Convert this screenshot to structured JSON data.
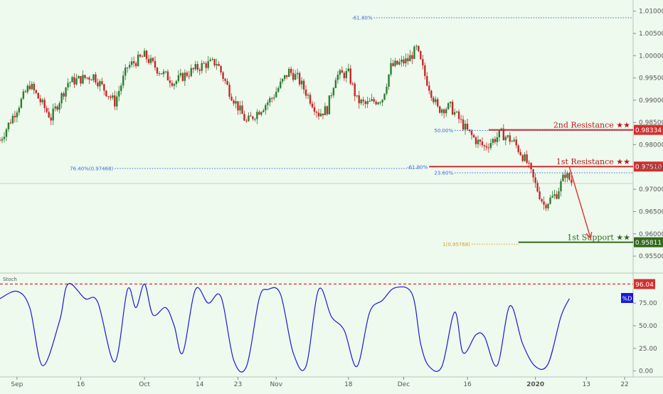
{
  "chart_data": [
    {
      "type": "candlestick",
      "title": "",
      "y_axis": {
        "range": [
          0.9515,
          1.0125
        ],
        "ticks": [
          "0.95500",
          "0.96000",
          "0.96500",
          "0.97000",
          "0.97500",
          "0.98000",
          "0.98500",
          "0.99000",
          "0.99500",
          "1.00000",
          "1.00500",
          "1.01000"
        ]
      },
      "x_axis": {
        "range": [
          "2019-08-28",
          "2020-01-24"
        ],
        "ticks": [
          {
            "date": "2019-09-01",
            "label": "Sep",
            "bold": false
          },
          {
            "date": "2019-09-16",
            "label": "16",
            "bold": false
          },
          {
            "date": "2019-10-01",
            "label": "Oct",
            "bold": false
          },
          {
            "date": "2019-10-14",
            "label": "14",
            "bold": false
          },
          {
            "date": "2019-10-23",
            "label": "23",
            "bold": false
          },
          {
            "date": "2019-11-01",
            "label": "Nov",
            "bold": false
          },
          {
            "date": "2019-11-18",
            "label": "18",
            "bold": false
          },
          {
            "date": "2019-12-01",
            "label": "Dec",
            "bold": false
          },
          {
            "date": "2019-12-16",
            "label": "16",
            "bold": false
          },
          {
            "date": "2020-01-01",
            "label": "2020",
            "bold": true
          },
          {
            "date": "2020-01-13",
            "label": "13",
            "bold": false
          },
          {
            "date": "2020-01-22",
            "label": "22",
            "bold": false
          }
        ]
      },
      "price_path": [
        {
          "date": "2019-08-28",
          "price": 0.981
        },
        {
          "date": "2019-09-04",
          "price": 0.9935
        },
        {
          "date": "2019-09-09",
          "price": 0.986
        },
        {
          "date": "2019-09-13",
          "price": 0.994
        },
        {
          "date": "2019-09-19",
          "price": 0.9955
        },
        {
          "date": "2019-09-24",
          "price": 0.9895
        },
        {
          "date": "2019-09-27",
          "price": 0.9975
        },
        {
          "date": "2019-10-01",
          "price": 1.0
        },
        {
          "date": "2019-10-04",
          "price": 0.997
        },
        {
          "date": "2019-10-08",
          "price": 0.994
        },
        {
          "date": "2019-10-11",
          "price": 0.996
        },
        {
          "date": "2019-10-15",
          "price": 0.998
        },
        {
          "date": "2019-10-18",
          "price": 0.9985
        },
        {
          "date": "2019-10-21",
          "price": 0.992
        },
        {
          "date": "2019-10-25",
          "price": 0.985
        },
        {
          "date": "2019-10-31",
          "price": 0.9905
        },
        {
          "date": "2019-11-04",
          "price": 0.9965
        },
        {
          "date": "2019-11-06",
          "price": 0.995
        },
        {
          "date": "2019-11-11",
          "price": 0.987
        },
        {
          "date": "2019-11-13",
          "price": 0.988
        },
        {
          "date": "2019-11-15",
          "price": 0.9955
        },
        {
          "date": "2019-11-18",
          "price": 0.996
        },
        {
          "date": "2019-11-20",
          "price": 0.99
        },
        {
          "date": "2019-11-22",
          "price": 0.989
        },
        {
          "date": "2019-11-26",
          "price": 0.9905
        },
        {
          "date": "2019-11-28",
          "price": 0.9975
        },
        {
          "date": "2019-12-02",
          "price": 0.999
        },
        {
          "date": "2019-12-04",
          "price": 1.0015
        },
        {
          "date": "2019-12-06",
          "price": 0.9955
        },
        {
          "date": "2019-12-09",
          "price": 0.988
        },
        {
          "date": "2019-12-12",
          "price": 0.9885
        },
        {
          "date": "2019-12-16",
          "price": 0.983
        },
        {
          "date": "2019-12-18",
          "price": 0.981
        },
        {
          "date": "2019-12-20",
          "price": 0.9795
        },
        {
          "date": "2019-12-24",
          "price": 0.9825
        },
        {
          "date": "2019-12-27",
          "price": 0.9805
        },
        {
          "date": "2019-12-30",
          "price": 0.976
        },
        {
          "date": "2020-01-01",
          "price": 0.971
        },
        {
          "date": "2020-01-03",
          "price": 0.9665
        },
        {
          "date": "2020-01-06",
          "price": 0.969
        },
        {
          "date": "2020-01-08",
          "price": 0.9735
        },
        {
          "date": "2020-01-10",
          "price": 0.971
        }
      ],
      "horizontal_levels": [
        {
          "name": "2nd Resistance",
          "stars": "★★",
          "value_label": "0.98334",
          "price": 0.98334,
          "color": "#d32f2f",
          "label_color": "#b71c1c",
          "from_date": "2019-12-21"
        },
        {
          "name": "1st Resistance",
          "stars": "★★",
          "value_label": "0.97510",
          "price": 0.9751,
          "color": "#d32f2f",
          "label_color": "#b71c1c",
          "from_date": "2019-12-07"
        },
        {
          "name": "1st Support",
          "stars": "★★",
          "value_label": "0.95811",
          "price": 0.95811,
          "color": "#33691e",
          "label_color": "#33691e",
          "from_date": "2019-12-28"
        }
      ],
      "current_price": 0.9713,
      "projection_arrow": {
        "from_date": "2020-01-09",
        "from_price": 0.975,
        "to_date": "2020-01-14",
        "to_price": 0.959,
        "color": "#e53935"
      },
      "fib_annotations": [
        {
          "label": "-61.80%",
          "price": 1.0085,
          "from_date": "2019-11-24",
          "to_date": "2020-01-24",
          "color": "#3f6ad8"
        },
        {
          "label": "50.00%",
          "price": 0.9832,
          "from_date": "2019-12-13",
          "to_date": "2020-01-24",
          "color": "#3f6ad8"
        },
        {
          "label": "76.40%(0.97468)",
          "price": 0.97468,
          "from_date": "2019-09-24",
          "to_date": "2019-12-05",
          "color": "#3f6ad8"
        },
        {
          "label": "-61.80%",
          "price": 0.975,
          "from_date": "2019-12-07",
          "to_date": "2019-12-09",
          "color": "#3f6ad8"
        },
        {
          "label": "23.60%",
          "price": 0.9737,
          "from_date": "2019-12-13",
          "to_date": "2020-01-24",
          "color": "#3f6ad8"
        },
        {
          "label": "1(0.95768)",
          "price": 0.95768,
          "from_date": "2019-12-17",
          "to_date": "2019-12-28",
          "color": "#d49c2a"
        }
      ]
    },
    {
      "type": "line",
      "title": "Stoch",
      "series": [
        {
          "name": "%D",
          "color": "#1a1ad8"
        }
      ],
      "y_axis": {
        "range": [
          -5,
          105
        ],
        "ticks": [
          "0.00",
          "25.00",
          "50.00",
          "75.00"
        ]
      },
      "overbought": {
        "label": "96.04",
        "value": 96.04,
        "color": "#d32f2f"
      },
      "points": [
        {
          "date": "2019-08-28",
          "value": 80
        },
        {
          "date": "2019-09-01",
          "value": 88
        },
        {
          "date": "2019-09-04",
          "value": 70
        },
        {
          "date": "2019-09-07",
          "value": 6
        },
        {
          "date": "2019-09-11",
          "value": 55
        },
        {
          "date": "2019-09-13",
          "value": 96
        },
        {
          "date": "2019-09-17",
          "value": 80
        },
        {
          "date": "2019-09-20",
          "value": 76
        },
        {
          "date": "2019-09-24",
          "value": 10
        },
        {
          "date": "2019-09-27",
          "value": 90
        },
        {
          "date": "2019-09-29",
          "value": 70
        },
        {
          "date": "2019-10-01",
          "value": 96
        },
        {
          "date": "2019-10-03",
          "value": 62
        },
        {
          "date": "2019-10-06",
          "value": 70
        },
        {
          "date": "2019-10-08",
          "value": 50
        },
        {
          "date": "2019-10-10",
          "value": 20
        },
        {
          "date": "2019-10-13",
          "value": 90
        },
        {
          "date": "2019-10-16",
          "value": 75
        },
        {
          "date": "2019-10-19",
          "value": 82
        },
        {
          "date": "2019-10-22",
          "value": 12
        },
        {
          "date": "2019-10-25",
          "value": 5
        },
        {
          "date": "2019-10-28",
          "value": 80
        },
        {
          "date": "2019-10-30",
          "value": 90
        },
        {
          "date": "2019-11-02",
          "value": 85
        },
        {
          "date": "2019-11-05",
          "value": 20
        },
        {
          "date": "2019-11-08",
          "value": 5
        },
        {
          "date": "2019-11-11",
          "value": 90
        },
        {
          "date": "2019-11-14",
          "value": 60
        },
        {
          "date": "2019-11-17",
          "value": 45
        },
        {
          "date": "2019-11-20",
          "value": 5
        },
        {
          "date": "2019-11-23",
          "value": 65
        },
        {
          "date": "2019-11-26",
          "value": 78
        },
        {
          "date": "2019-11-29",
          "value": 92
        },
        {
          "date": "2019-12-03",
          "value": 85
        },
        {
          "date": "2019-12-05",
          "value": 30
        },
        {
          "date": "2019-12-07",
          "value": 5
        },
        {
          "date": "2019-12-10",
          "value": 5
        },
        {
          "date": "2019-12-13",
          "value": 65
        },
        {
          "date": "2019-12-15",
          "value": 20
        },
        {
          "date": "2019-12-18",
          "value": 40
        },
        {
          "date": "2019-12-20",
          "value": 38
        },
        {
          "date": "2019-12-23",
          "value": 6
        },
        {
          "date": "2019-12-26",
          "value": 72
        },
        {
          "date": "2019-12-29",
          "value": 30
        },
        {
          "date": "2020-01-01",
          "value": 5
        },
        {
          "date": "2020-01-04",
          "value": 8
        },
        {
          "date": "2020-01-07",
          "value": 60
        },
        {
          "date": "2020-01-09",
          "value": 80
        }
      ]
    }
  ]
}
